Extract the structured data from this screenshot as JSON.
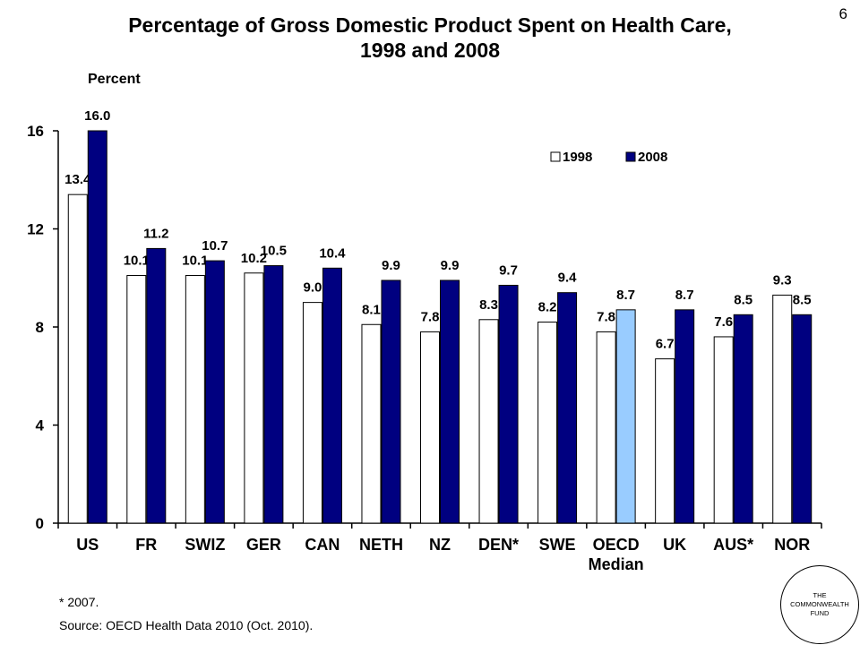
{
  "page_number": "6",
  "title_line1": "Percentage of Gross Domestic Product Spent on Health Care,",
  "title_line2": "1998 and 2008",
  "footnote": "* 2007.",
  "source": "Source: OECD Health Data 2010 (Oct. 2010).",
  "logo": {
    "line1": "THE",
    "line2": "COMMONWEALTH",
    "line3": "FUND"
  },
  "colors": {
    "s1998": "#ffffff",
    "s2008": "#000080",
    "oecd_highlight": "#99ccff"
  },
  "chart_data": {
    "type": "bar",
    "ylabel": "Percent",
    "ylim": [
      0,
      16
    ],
    "yticks": [
      "0",
      "4",
      "8",
      "12",
      "16"
    ],
    "grid": false,
    "legend_position": "top-right",
    "categories": [
      "US",
      "FR",
      "SWIZ",
      "GER",
      "CAN",
      "NETH",
      "NZ",
      "DEN*",
      "SWE",
      "OECD",
      "UK",
      "AUS*",
      "NOR"
    ],
    "category_sublabels": {
      "OECD": "Median"
    },
    "series": [
      {
        "name": "1998",
        "values": [
          13.4,
          10.1,
          10.1,
          10.2,
          9.0,
          8.1,
          7.8,
          8.3,
          8.2,
          7.8,
          6.7,
          7.6,
          9.3
        ],
        "labels": [
          "13.4",
          "10.1",
          "10.1",
          "10.2",
          "9.0",
          "8.1",
          "7.8",
          "8.3",
          "8.2",
          "7.8",
          "6.7",
          "7.6",
          "9.3"
        ]
      },
      {
        "name": "2008",
        "values": [
          16.0,
          11.2,
          10.7,
          10.5,
          10.4,
          9.9,
          9.9,
          9.7,
          9.4,
          8.7,
          8.7,
          8.5,
          8.5
        ],
        "labels": [
          "16.0",
          "11.2",
          "10.7",
          "10.5",
          "10.4",
          "9.9",
          "9.9",
          "9.7",
          "9.4",
          "8.7",
          "8.7",
          "8.5",
          "8.5"
        ]
      }
    ]
  }
}
